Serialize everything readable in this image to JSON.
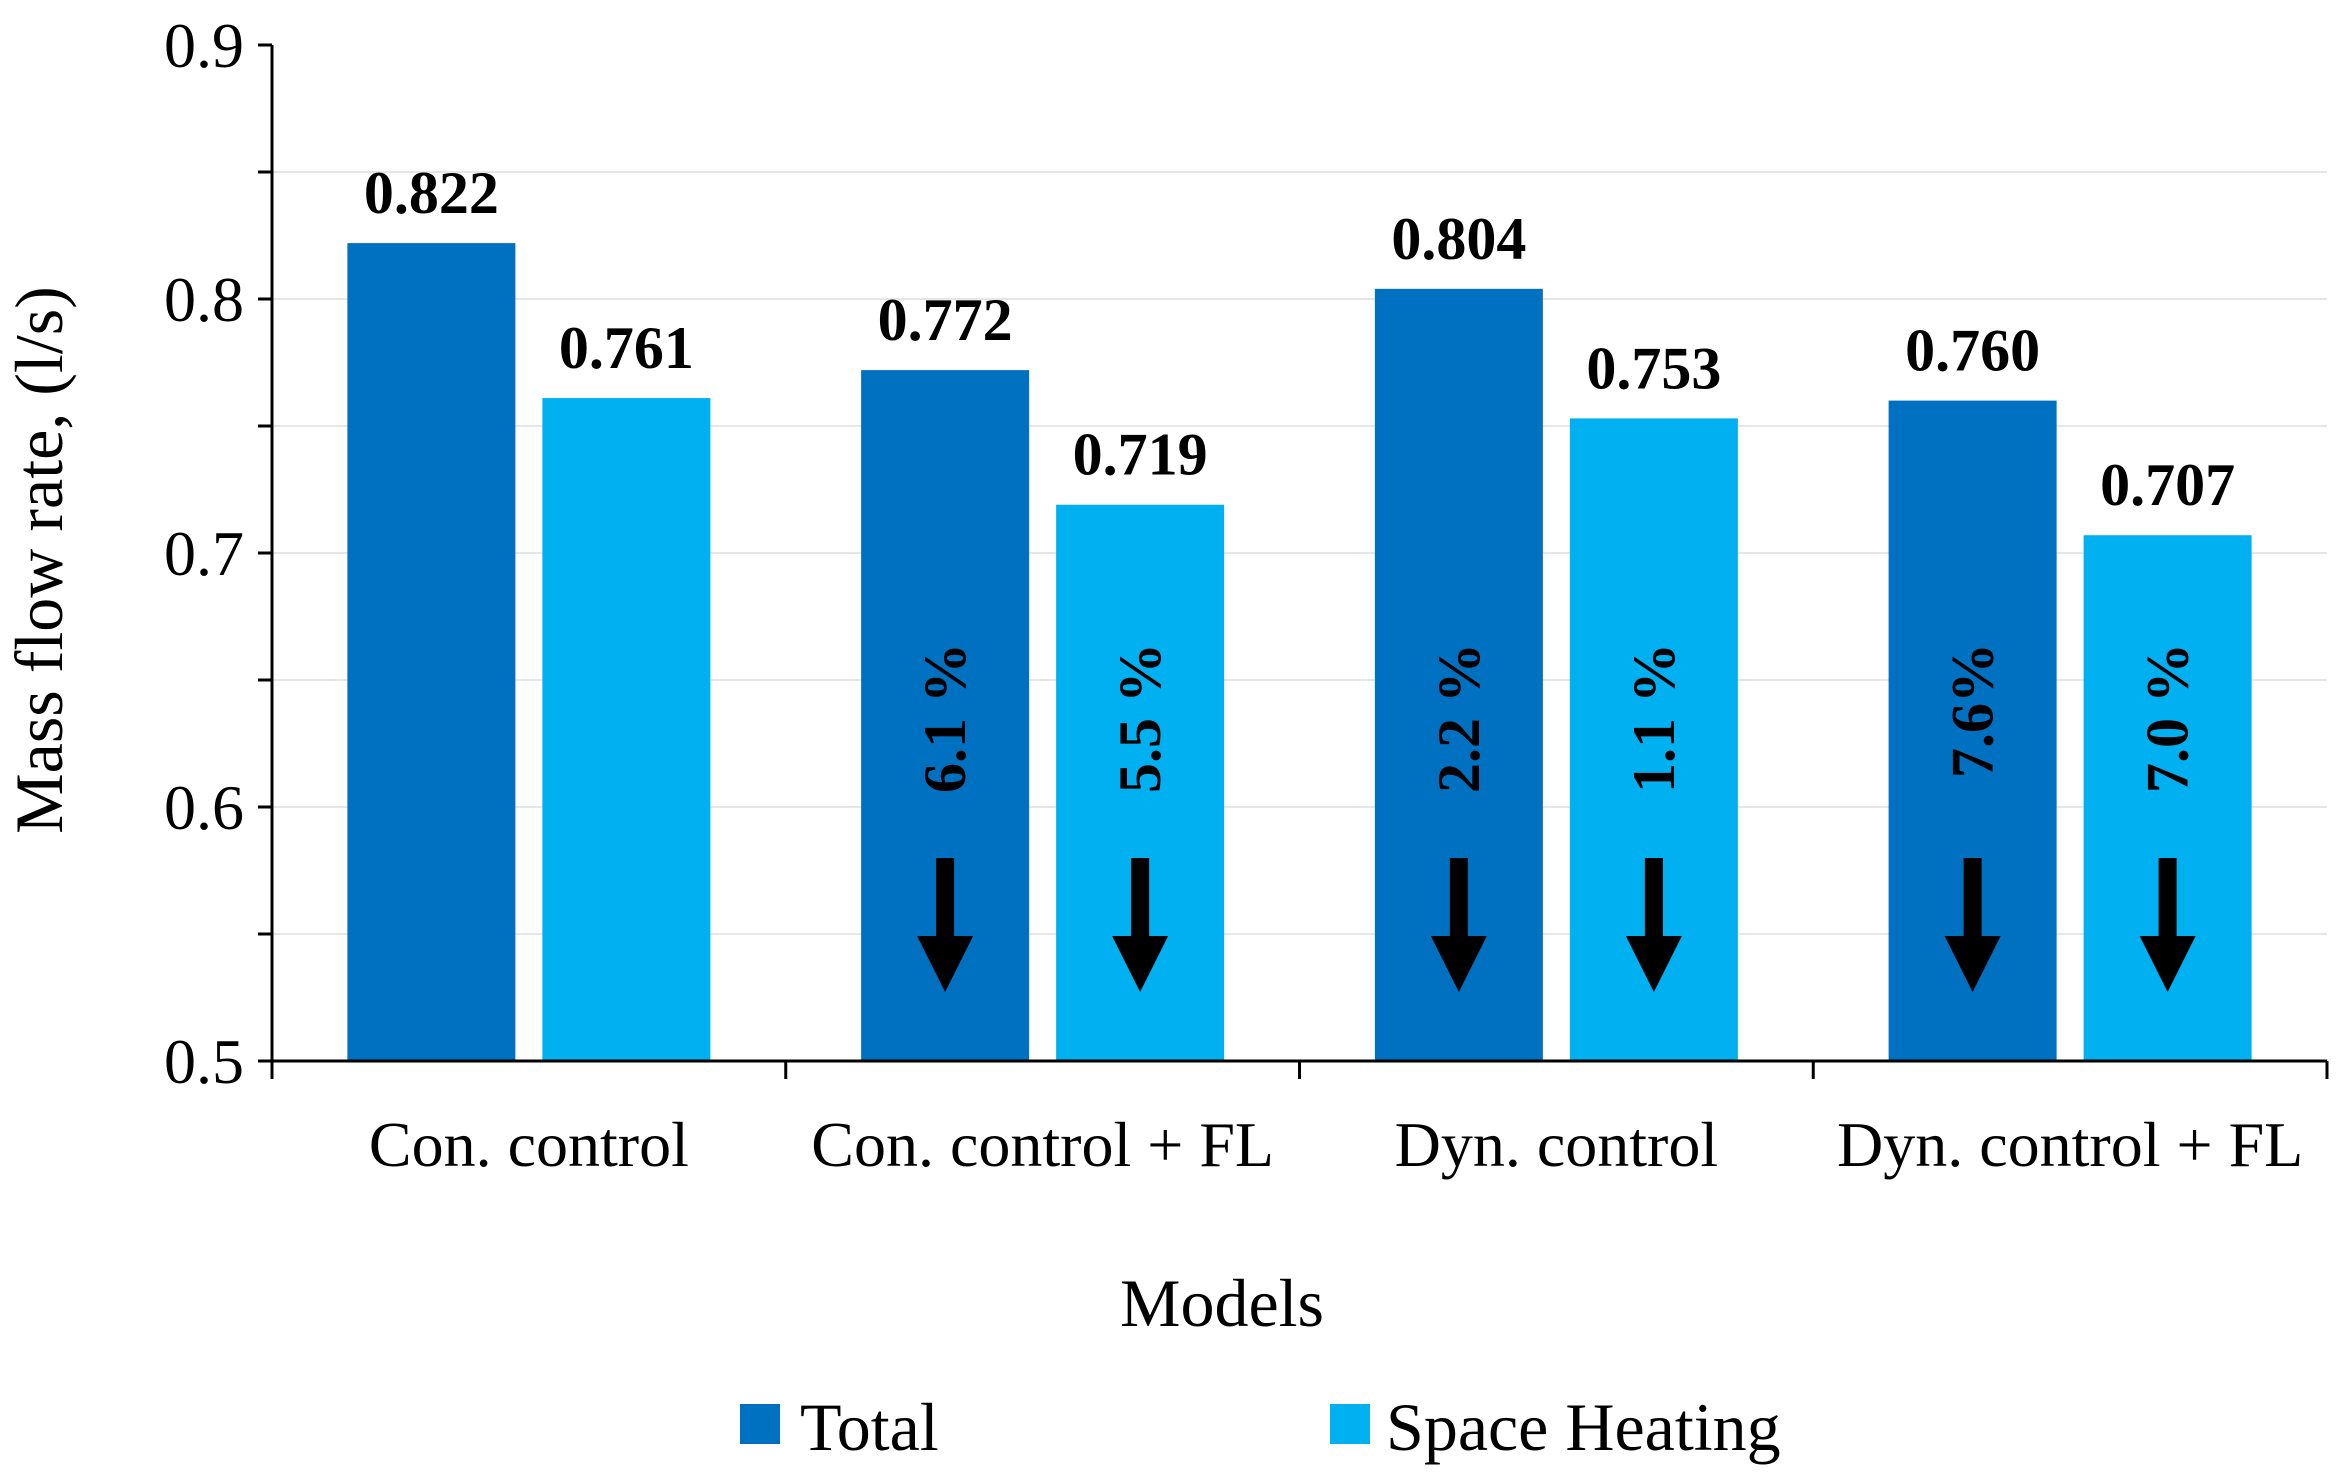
{
  "chart_data": {
    "type": "bar",
    "title": "",
    "xlabel": "Models",
    "ylabel": "Mass flow rate, (l/s)",
    "ylim": [
      0.5,
      0.9
    ],
    "yticks": [
      "0.5",
      "0.6",
      "0.7",
      "0.8",
      "0.9"
    ],
    "categories": [
      "Con. control",
      "Con. control + FL",
      "Dyn. control",
      "Dyn. control + FL"
    ],
    "series": [
      {
        "name": "Total",
        "color": "#0070C0",
        "values": [
          0.822,
          0.772,
          0.804,
          0.76
        ],
        "labels": [
          "0.822",
          "0.772",
          "0.804",
          "0.760"
        ],
        "reductions": [
          null,
          "6.1 %",
          "2.2 %",
          "7.6%"
        ]
      },
      {
        "name": "Space Heating",
        "color": "#00B0F0",
        "values": [
          0.761,
          0.719,
          0.753,
          0.707
        ],
        "labels": [
          "0.761",
          "0.719",
          "0.753",
          "0.707"
        ],
        "reductions": [
          null,
          "5.5 %",
          "1.1 %",
          "7.0 %"
        ]
      }
    ],
    "grid": true,
    "legend": "bottom"
  }
}
